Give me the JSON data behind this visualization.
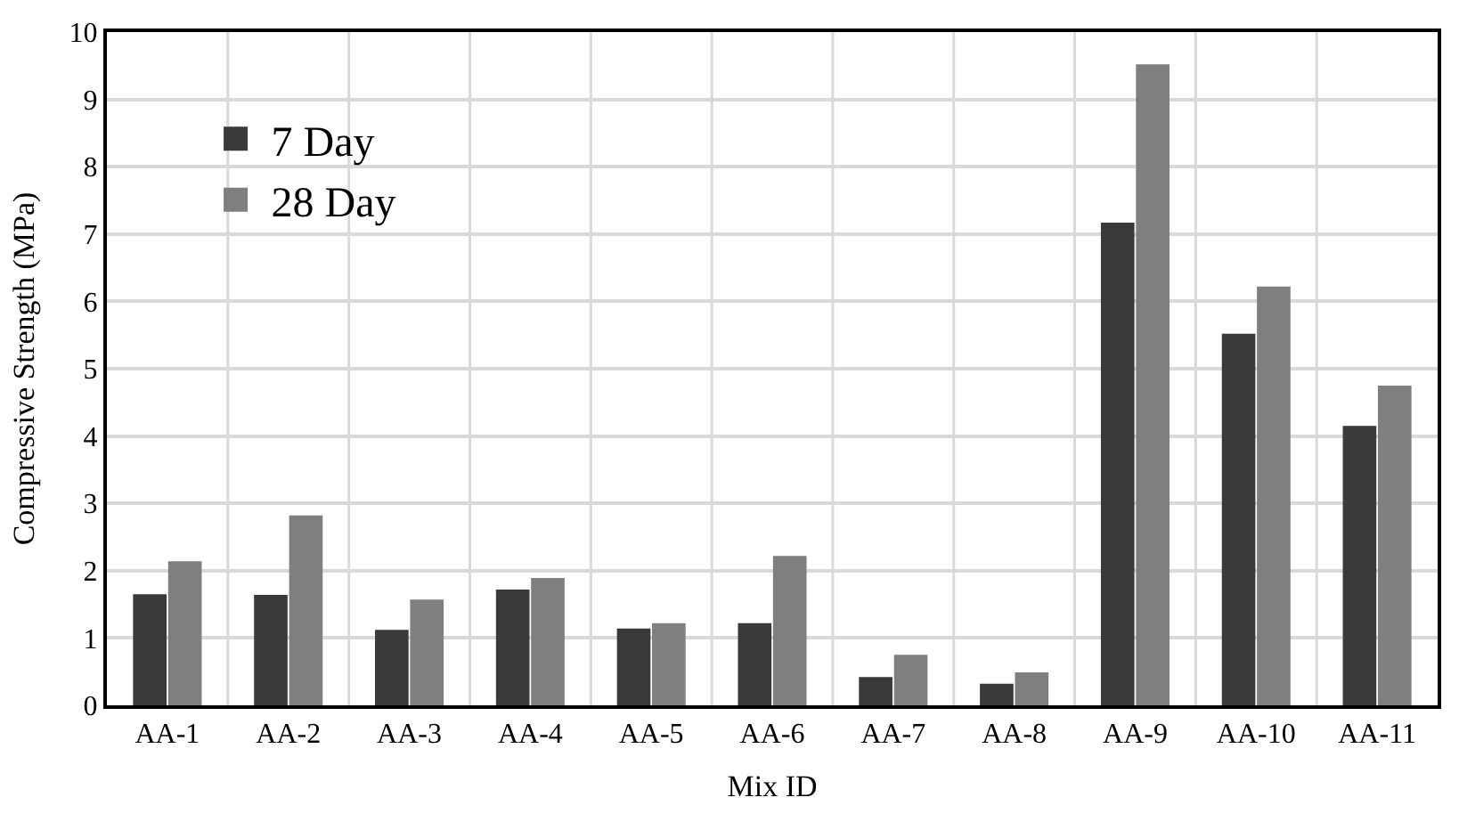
{
  "chart_data": {
    "type": "bar",
    "xlabel": "Mix ID",
    "ylabel": "Compressive Strength (MPa)",
    "categories": [
      "AA-1",
      "AA-2",
      "AA-3",
      "AA-4",
      "AA-5",
      "AA-6",
      "AA-7",
      "AA-8",
      "AA-9",
      "AA-10",
      "AA-11"
    ],
    "series": [
      {
        "name": "7 Day",
        "color": "#3a3a3a",
        "values": [
          1.63,
          1.62,
          1.1,
          1.7,
          1.12,
          1.2,
          0.4,
          0.3,
          7.15,
          5.5,
          4.13
        ]
      },
      {
        "name": "28 Day",
        "color": "#7f7f7f",
        "values": [
          2.12,
          2.8,
          1.55,
          1.87,
          1.2,
          2.2,
          0.73,
          0.47,
          9.5,
          6.2,
          4.73
        ]
      }
    ],
    "ylim": [
      0,
      10
    ],
    "yticks": [
      0,
      1,
      2,
      3,
      4,
      5,
      6,
      7,
      8,
      9,
      10
    ],
    "grid": true,
    "legend": "top left"
  }
}
